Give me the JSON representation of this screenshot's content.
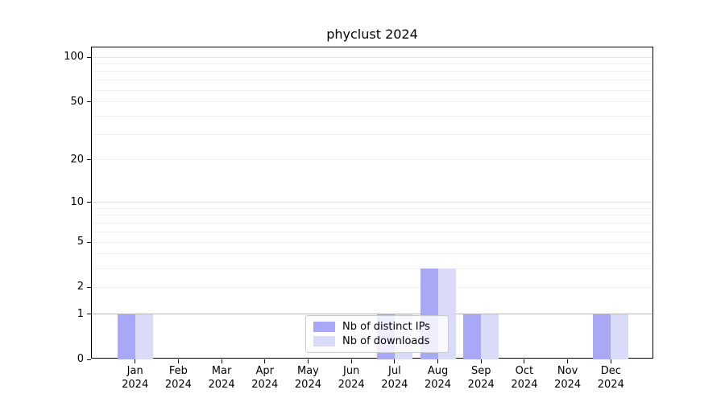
{
  "title": "phyclust 2024",
  "chart_data": {
    "type": "bar",
    "title": "phyclust 2024",
    "categories": [
      "Jan 2024",
      "Feb 2024",
      "Mar 2024",
      "Apr 2024",
      "May 2024",
      "Jun 2024",
      "Jul 2024",
      "Aug 2024",
      "Sep 2024",
      "Oct 2024",
      "Nov 2024",
      "Dec 2024"
    ],
    "series": [
      {
        "name": "Nb of distinct IPs",
        "color": "#a8a8f6",
        "values": [
          1,
          0,
          0,
          0,
          0,
          0,
          1,
          3,
          1,
          0,
          0,
          1
        ]
      },
      {
        "name": "Nb of downloads",
        "color": "#dadaf9",
        "values": [
          1,
          0,
          0,
          0,
          0,
          0,
          1,
          3,
          1,
          0,
          0,
          1
        ]
      }
    ],
    "yticks": [
      0,
      1,
      2,
      5,
      10,
      20,
      50,
      100
    ],
    "ylim": [
      0,
      120
    ],
    "scale": "log1p",
    "xlabel": "",
    "ylabel": "",
    "grid": {
      "dark": [
        1
      ],
      "major": [
        10,
        100
      ],
      "minor": [
        2,
        3,
        4,
        5,
        6,
        7,
        8,
        9,
        20,
        30,
        40,
        50,
        60,
        70,
        80,
        90
      ]
    },
    "legend_position": "bottom-center"
  }
}
